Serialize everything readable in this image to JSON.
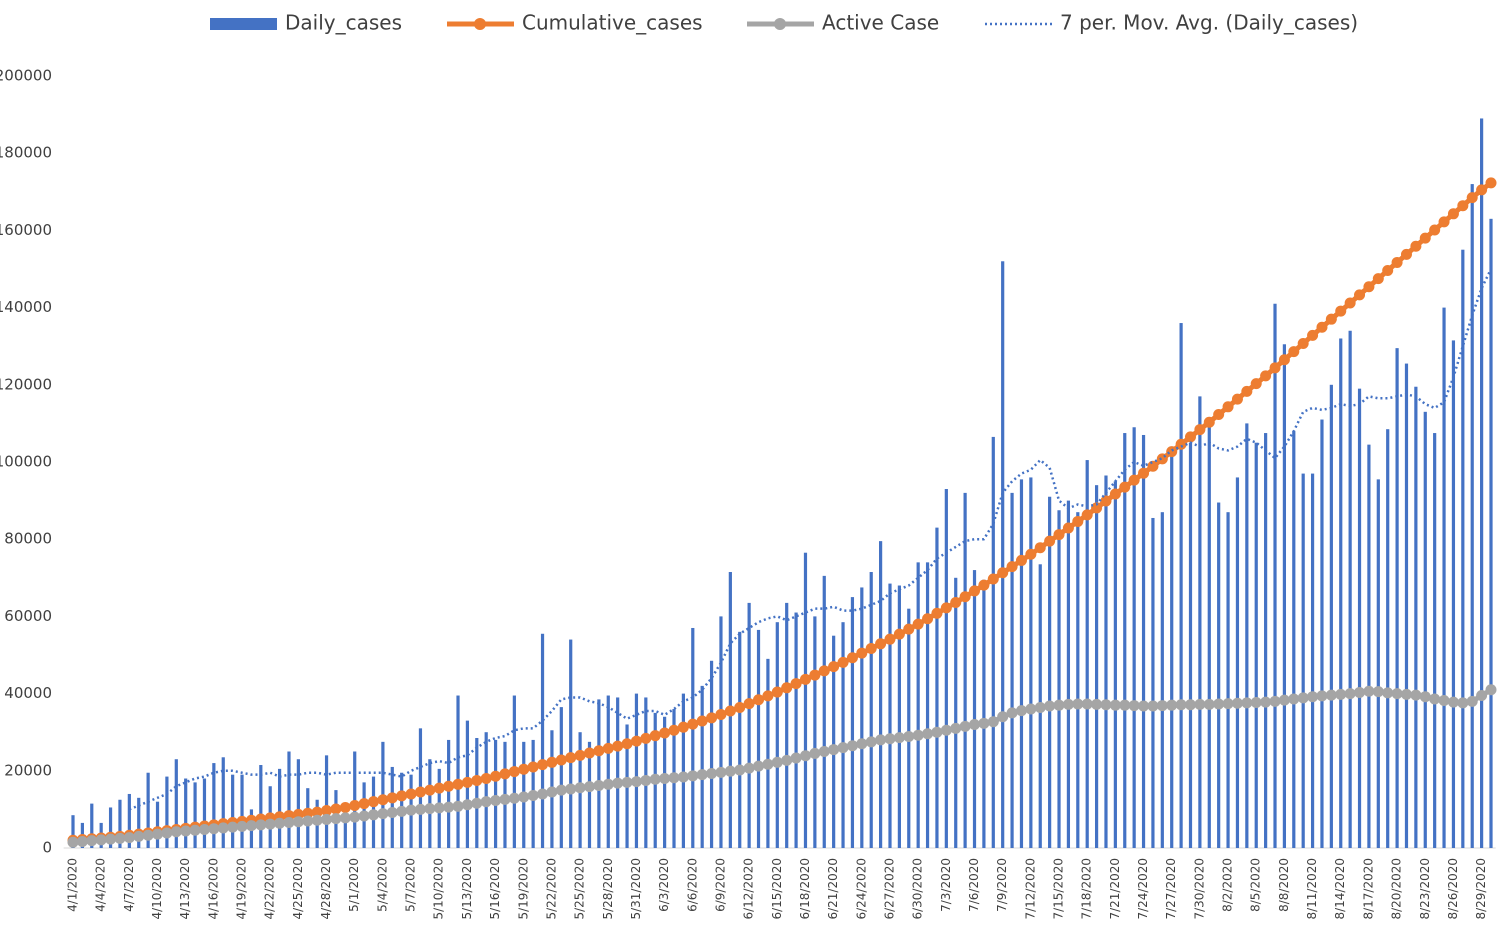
{
  "chart_data": {
    "type": "combo",
    "categories": [
      "4/1/2020",
      null,
      null,
      "4/4/2020",
      null,
      null,
      "4/7/2020",
      null,
      null,
      "4/10/2020",
      null,
      null,
      "4/13/2020",
      null,
      null,
      "4/16/2020",
      null,
      null,
      "4/19/2020",
      null,
      null,
      "4/22/2020",
      null,
      null,
      "4/25/2020",
      null,
      null,
      "4/28/2020",
      null,
      null,
      "5/1/2020",
      null,
      null,
      "5/4/2020",
      null,
      null,
      "5/7/2020",
      null,
      null,
      "5/10/2020",
      null,
      null,
      "5/13/2020",
      null,
      null,
      "5/16/2020",
      null,
      null,
      "5/19/2020",
      null,
      null,
      "5/22/2020",
      null,
      null,
      "5/25/2020",
      null,
      null,
      "5/28/2020",
      null,
      null,
      "5/31/2020",
      null,
      null,
      "6/3/2020",
      null,
      null,
      "6/6/2020",
      null,
      null,
      "6/9/2020",
      null,
      null,
      "6/12/2020",
      null,
      null,
      "6/15/2020",
      null,
      null,
      "6/18/2020",
      null,
      null,
      "6/21/2020",
      null,
      null,
      "6/24/2020",
      null,
      null,
      "6/27/2020",
      null,
      null,
      "6/30/2020",
      null,
      null,
      "7/3/2020",
      null,
      null,
      "7/6/2020",
      null,
      null,
      "7/9/2020",
      null,
      null,
      "7/12/2020",
      null,
      null,
      "7/15/2020",
      null,
      null,
      "7/18/2020",
      null,
      null,
      "7/21/2020",
      null,
      null,
      "7/24/2020",
      null,
      null,
      "7/27/2020",
      null,
      null,
      "7/30/2020",
      null,
      null,
      "8/2/2020",
      null,
      null,
      "8/5/2020",
      null,
      null,
      "8/8/2020",
      null,
      null,
      "8/11/2020",
      null,
      null,
      "8/14/2020",
      null,
      null,
      "8/17/2020",
      null,
      null,
      "8/20/2020",
      null,
      null,
      "8/23/2020",
      null,
      null,
      "8/26/2020",
      null,
      null,
      "8/29/2020",
      null
    ],
    "series": [
      {
        "name": "Daily_cases",
        "type": "bar",
        "color": "#4472c4",
        "values": [
          8500,
          6500,
          11500,
          6500,
          10500,
          12500,
          14000,
          13000,
          19500,
          12000,
          18500,
          23000,
          18000,
          17000,
          18000,
          22000,
          23500,
          19000,
          19000,
          10000,
          21500,
          16000,
          20500,
          25000,
          23000,
          15500,
          12500,
          24000,
          15000,
          11500,
          25000,
          17000,
          18500,
          27500,
          21000,
          19500,
          19000,
          31000,
          23000,
          20500,
          28000,
          39500,
          33000,
          28500,
          30000,
          28000,
          27500,
          39500,
          27500,
          28000,
          55500,
          30500,
          36500,
          54000,
          30000,
          27500,
          38500,
          39500,
          39000,
          32000,
          40000,
          39000,
          35000,
          34000,
          36000,
          40000,
          57000,
          42000,
          48500,
          60000,
          71500,
          56000,
          63500,
          56500,
          49000,
          58500,
          63500,
          61000,
          76500,
          60000,
          70500,
          55000,
          58500,
          65000,
          67500,
          71500,
          79500,
          68500,
          68000,
          62000,
          74000,
          74000,
          83000,
          93000,
          70000,
          92000,
          72000,
          69500,
          106500,
          152000,
          92000,
          95500,
          96000,
          73500,
          91000,
          87500,
          90000,
          87000,
          100500,
          94000,
          96500,
          95000,
          107500,
          109000,
          107000,
          85500,
          87000,
          102000,
          136000,
          105000,
          117000,
          110000,
          89500,
          87000,
          96000,
          110000,
          105000,
          107500,
          141000,
          130500,
          108000,
          97000,
          97000,
          111000,
          120000,
          132000,
          134000,
          119000,
          104500,
          95500,
          108500,
          129500,
          125500,
          119500,
          113000,
          107500,
          140000,
          131500,
          155000,
          172000,
          189000,
          163000
        ]
      },
      {
        "name": "Cumulative_cases",
        "type": "line",
        "marker": true,
        "color": "#ed7d31",
        "values": [
          2000,
          2200,
          2400,
          2600,
          2800,
          3000,
          3300,
          3600,
          3900,
          4200,
          4500,
          4800,
          5100,
          5400,
          5700,
          6000,
          6300,
          6600,
          6900,
          7200,
          7500,
          7800,
          8100,
          8400,
          8700,
          9000,
          9300,
          9700,
          10100,
          10500,
          11000,
          11500,
          12000,
          12500,
          13000,
          13500,
          14000,
          14500,
          15000,
          15500,
          16000,
          16500,
          17000,
          17500,
          18000,
          18600,
          19200,
          19800,
          20400,
          21000,
          21600,
          22200,
          22800,
          23400,
          24000,
          24600,
          25200,
          25800,
          26400,
          27000,
          27700,
          28400,
          29100,
          29800,
          30500,
          31300,
          32100,
          32900,
          33700,
          34600,
          35500,
          36400,
          37400,
          38400,
          39400,
          40400,
          41500,
          42600,
          43700,
          44800,
          45900,
          47000,
          48100,
          49300,
          50500,
          51700,
          52900,
          54100,
          55400,
          56700,
          58000,
          59400,
          60800,
          62200,
          63600,
          65100,
          66600,
          68100,
          69700,
          71300,
          72900,
          74500,
          76100,
          77800,
          79500,
          81200,
          82900,
          84600,
          86300,
          88100,
          89900,
          91700,
          93500,
          95300,
          97100,
          98900,
          100800,
          102700,
          104600,
          106500,
          108400,
          110300,
          112300,
          114300,
          116300,
          118300,
          120300,
          122300,
          124400,
          126500,
          128600,
          130700,
          132800,
          134900,
          137000,
          139100,
          141200,
          143300,
          145400,
          147500,
          149600,
          151700,
          153800,
          155900,
          158000,
          160100,
          162200,
          164300,
          166400,
          168500,
          170500,
          172300
        ]
      },
      {
        "name": "Active Case",
        "type": "line",
        "marker": true,
        "color": "#a5a5a5",
        "values": [
          1500,
          1700,
          1900,
          2100,
          2300,
          2500,
          2700,
          3000,
          3300,
          3600,
          3900,
          4200,
          4400,
          4600,
          4800,
          5000,
          5200,
          5400,
          5600,
          5800,
          6000,
          6200,
          6400,
          6600,
          6800,
          7000,
          7200,
          7400,
          7600,
          7800,
          8000,
          8300,
          8600,
          8900,
          9200,
          9500,
          9800,
          10000,
          10200,
          10400,
          10600,
          10800,
          11200,
          11600,
          12000,
          12300,
          12600,
          12900,
          13200,
          13600,
          14000,
          14500,
          15000,
          15300,
          15600,
          15900,
          16200,
          16500,
          16800,
          17000,
          17200,
          17500,
          17800,
          18000,
          18200,
          18400,
          18700,
          19000,
          19300,
          19600,
          19900,
          20200,
          20700,
          21200,
          21700,
          22200,
          22700,
          23300,
          23900,
          24500,
          25000,
          25500,
          26000,
          26500,
          27000,
          27500,
          28000,
          28300,
          28600,
          28900,
          29200,
          29600,
          30000,
          30500,
          31000,
          31500,
          32000,
          32300,
          32700,
          34000,
          35000,
          35600,
          36000,
          36400,
          36800,
          37000,
          37200,
          37300,
          37300,
          37200,
          37100,
          37000,
          37000,
          36900,
          36800,
          36800,
          36900,
          37000,
          37100,
          37100,
          37200,
          37200,
          37300,
          37400,
          37500,
          37600,
          37700,
          37800,
          38000,
          38300,
          38600,
          38900,
          39200,
          39400,
          39600,
          39800,
          40000,
          40300,
          40600,
          40500,
          40200,
          40000,
          39800,
          39600,
          39200,
          38600,
          38200,
          37800,
          37600,
          38000,
          39500,
          41000
        ]
      },
      {
        "name": "7 per. Mov. Avg. (Daily_cases)",
        "type": "line",
        "marker": false,
        "dotted": true,
        "color": "#4472c4",
        "values": [
          null,
          null,
          null,
          null,
          null,
          null,
          10000,
          11000,
          12000,
          13000,
          14000,
          16000,
          17000,
          18000,
          18500,
          19500,
          20000,
          20000,
          19500,
          19000,
          19000,
          19500,
          18500,
          19000,
          19000,
          19500,
          19500,
          19000,
          19500,
          19500,
          19500,
          19500,
          19500,
          19500,
          19000,
          18500,
          20000,
          21000,
          22000,
          22500,
          22000,
          23500,
          24000,
          26000,
          27500,
          28500,
          29000,
          30500,
          31000,
          31000,
          33000,
          35500,
          38500,
          39000,
          39000,
          38000,
          37500,
          36500,
          35000,
          33500,
          34500,
          35500,
          35500,
          34500,
          36000,
          38000,
          39000,
          41000,
          44000,
          48000,
          53000,
          55500,
          57000,
          58500,
          59500,
          60000,
          59000,
          60000,
          61000,
          62000,
          62000,
          62500,
          61500,
          61500,
          62000,
          63000,
          64000,
          66000,
          67000,
          68000,
          70000,
          72000,
          75000,
          76500,
          78000,
          79500,
          80000,
          80000,
          84000,
          92000,
          95000,
          97000,
          98000,
          100500,
          98500,
          90000,
          88000,
          89000,
          88500,
          89000,
          92000,
          95000,
          98000,
          100000,
          99000,
          100000,
          101000,
          103000,
          104000,
          105000,
          104000,
          105000,
          103500,
          103000,
          104000,
          106000,
          105000,
          103000,
          101000,
          104000,
          108000,
          113000,
          114000,
          113500,
          114000,
          115000,
          114500,
          115000,
          117000,
          116500,
          116500,
          117000,
          117500,
          117000,
          115000,
          114000,
          115500,
          122000,
          130000,
          138000,
          145000,
          150000
        ]
      }
    ],
    "ylim": [
      0,
      200000
    ],
    "yticks": [
      0,
      20000,
      40000,
      60000,
      80000,
      100000,
      120000,
      140000,
      160000,
      180000,
      200000
    ],
    "grid": false,
    "legend": "top"
  }
}
